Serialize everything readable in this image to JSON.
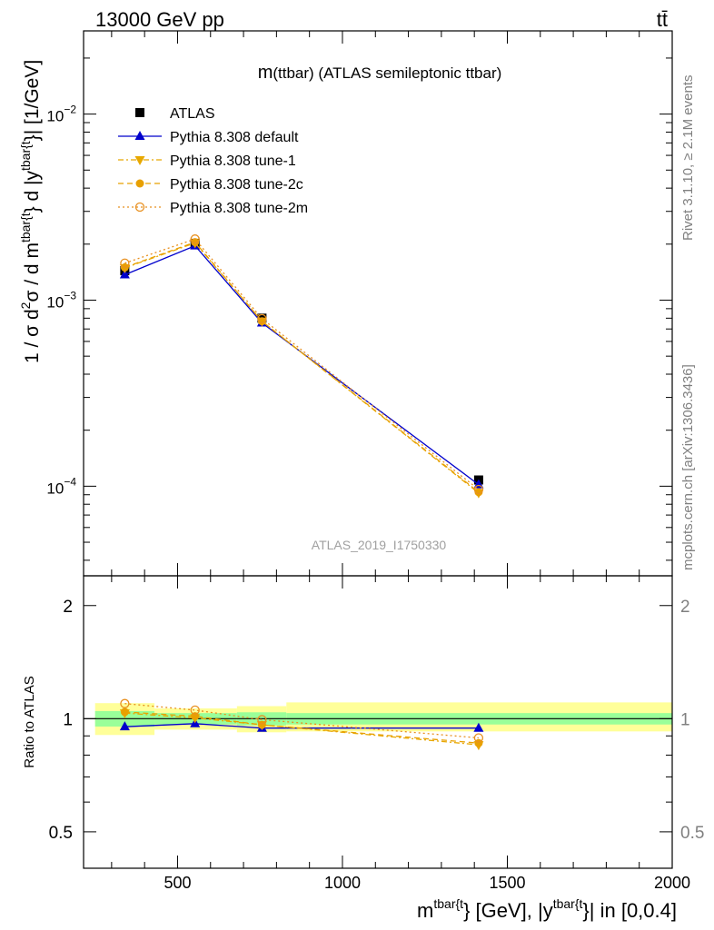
{
  "header": {
    "energy_label": "13000 GeV pp",
    "process_label": "tt̄"
  },
  "side_labels": {
    "rivet": "Rivet 3.1.10, ≥ 2.1M events",
    "mcplots": "mcplots.cern.ch [arXiv:1306.3436]"
  },
  "chart_data": {
    "type": "line",
    "title_main": "m",
    "title_paren": "(ttbar)",
    "title_rest": " (ATLAS semileptonic ttbar)",
    "watermark": "ATLAS_2019_I1750330",
    "xlabel": {
      "m": "m",
      "sup1": "tbar{t",
      "mid": "} [GeV], |y",
      "sup2": "tbar{t",
      "end": "}| in [0,0.4]"
    },
    "ylabel": {
      "pre": "1 / σ d",
      "sup_2": "2",
      "sig": "σ / d m",
      "sup_tb1": "tbar{t",
      "mid": "} d |y",
      "sup_tb2": "tbar{t",
      "end": "}| [1/GeV]"
    },
    "ratio_ylabel": "Ratio to ATLAS",
    "xlim": [
      215,
      2000
    ],
    "ylim": [
      3.3e-05,
      0.028
    ],
    "ylog": true,
    "ratio_ylim": [
      0.4,
      2.4
    ],
    "ratio_ylog": true,
    "x_ticks": [
      500,
      1000,
      1500,
      2000
    ],
    "x_tick_labels": [
      "500",
      "1000",
      "1500",
      "2000"
    ],
    "y_ticks": [
      {
        "value": 0.01,
        "base": "10",
        "exp": "−2"
      },
      {
        "value": 0.001,
        "base": "10",
        "exp": "−3"
      },
      {
        "value": 0.0001,
        "base": "10",
        "exp": "−4"
      }
    ],
    "ratio_ticks": [
      {
        "value": 2,
        "label": "2"
      },
      {
        "value": 1,
        "label": "1"
      },
      {
        "value": 0.5,
        "label": "0.5"
      }
    ],
    "x": [
      340,
      553,
      756,
      1413
    ],
    "bins": [
      [
        250,
        430
      ],
      [
        430,
        680
      ],
      [
        680,
        830
      ],
      [
        830,
        2000
      ]
    ],
    "ratio_bands": [
      {
        "lo": 0.953,
        "hi": 1.048,
        "lo_yellow": 0.905,
        "hi_yellow": 1.1
      },
      {
        "lo": 0.965,
        "hi": 1.035,
        "lo_yellow": 0.935,
        "hi_yellow": 1.065
      },
      {
        "lo": 0.96,
        "hi": 1.04,
        "lo_yellow": 0.92,
        "hi_yellow": 1.08
      },
      {
        "lo": 0.965,
        "hi": 1.035,
        "lo_yellow": 0.925,
        "hi_yellow": 1.105
      }
    ],
    "series": [
      {
        "name": "ATLAS",
        "values": [
          0.00144,
          0.00202,
          0.0008,
          0.000108
        ],
        "ratio": [
          1,
          1,
          1,
          1
        ],
        "color": "#000000",
        "marker": "square",
        "dash": ""
      },
      {
        "name": "Pythia 8.308 default",
        "values": [
          0.00137,
          0.00196,
          0.000755,
          0.000102
        ],
        "ratio": [
          0.952,
          0.97,
          0.944,
          0.944
        ],
        "color": "#0000cc",
        "marker": "triangle-up",
        "dash": ""
      },
      {
        "name": "Pythia 8.308 tune-1",
        "values": [
          0.00149,
          0.00203,
          0.00077,
          9.2e-05
        ],
        "ratio": [
          1.035,
          1.005,
          0.963,
          0.852
        ],
        "color": "#e8a800",
        "marker": "triangle-down",
        "dash": "6,3,2,3"
      },
      {
        "name": "Pythia 8.308 tune-2c",
        "values": [
          0.0015,
          0.00205,
          0.00077,
          9.3e-05
        ],
        "ratio": [
          1.042,
          1.015,
          0.963,
          0.861
        ],
        "color": "#e8a000",
        "marker": "circle",
        "dash": "6,4"
      },
      {
        "name": "Pythia 8.308 tune-2m",
        "values": [
          0.00158,
          0.00213,
          0.000795,
          9.6e-05
        ],
        "ratio": [
          1.097,
          1.054,
          0.994,
          0.889
        ],
        "color": "#e89020",
        "marker": "circle-open",
        "dash": "2,3"
      }
    ]
  }
}
